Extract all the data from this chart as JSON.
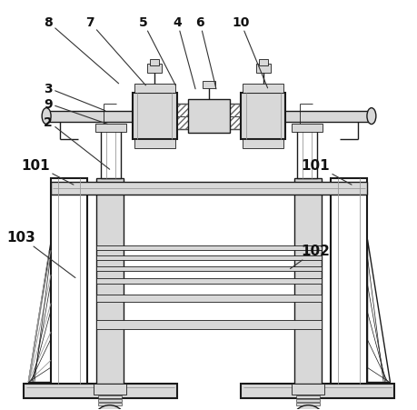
{
  "bg_color": "#ffffff",
  "line_color": "#1a1a1a",
  "light_gray": "#d8d8d8",
  "mid_gray": "#999999",
  "dark_gray": "#444444",
  "figsize": [
    4.6,
    4.52
  ],
  "dpi": 100
}
